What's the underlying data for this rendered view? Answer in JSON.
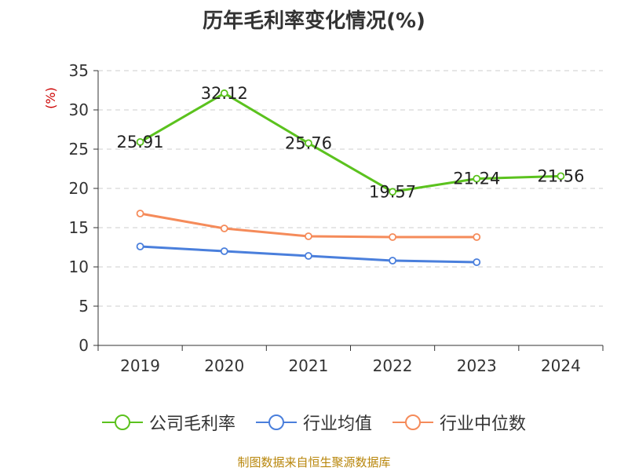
{
  "chart_data": {
    "type": "line",
    "title": "历年毛利率变化情况(%)",
    "ylabel": "(%)",
    "xlabel": "",
    "categories": [
      "2019",
      "2020",
      "2021",
      "2022",
      "2023",
      "2024"
    ],
    "ylim": [
      0,
      35
    ],
    "yticks": [
      0,
      5,
      10,
      15,
      20,
      25,
      30,
      35
    ],
    "grid": true,
    "legend_position": "bottom",
    "series": [
      {
        "name": "公司毛利率",
        "color": "#5bc21e",
        "values": [
          25.91,
          32.12,
          25.76,
          19.57,
          21.24,
          21.56
        ],
        "show_labels": true
      },
      {
        "name": "行业均值",
        "color": "#4a7fdc",
        "values": [
          12.6,
          12.0,
          11.4,
          10.8,
          10.6,
          null
        ],
        "show_labels": false
      },
      {
        "name": "行业中位数",
        "color": "#f58b5a",
        "values": [
          16.8,
          14.9,
          13.9,
          13.8,
          13.8,
          null
        ],
        "show_labels": false
      }
    ]
  },
  "source": "制图数据来自恒生聚源数据库"
}
